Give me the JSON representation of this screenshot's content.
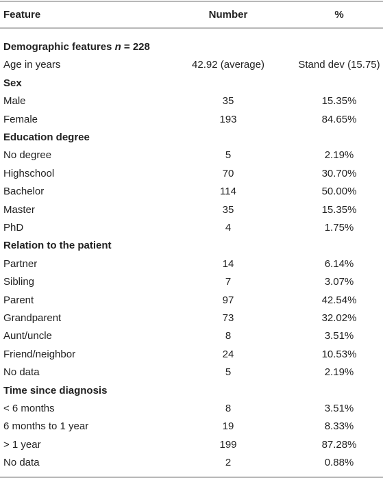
{
  "table": {
    "columns": [
      "Feature",
      "Number",
      "%"
    ],
    "rows": [
      {
        "section": "Demographic features",
        "italic": "n",
        "rest": "= 228"
      },
      [
        "Age in years",
        "42.92 (average)",
        "Stand dev (15.75)"
      ],
      {
        "section": "Sex"
      },
      [
        "Male",
        "35",
        "15.35%"
      ],
      [
        "Female",
        "193",
        "84.65%"
      ],
      {
        "section": "Education degree"
      },
      [
        "No degree",
        "5",
        "2.19%"
      ],
      [
        "Highschool",
        "70",
        "30.70%"
      ],
      [
        "Bachelor",
        "114",
        "50.00%"
      ],
      [
        "Master",
        "35",
        "15.35%"
      ],
      [
        "PhD",
        "4",
        "1.75%"
      ],
      {
        "section": "Relation to the patient"
      },
      [
        "Partner",
        "14",
        "6.14%"
      ],
      [
        "Sibling",
        "7",
        "3.07%"
      ],
      [
        "Parent",
        "97",
        "42.54%"
      ],
      [
        "Grandparent",
        "73",
        "32.02%"
      ],
      [
        "Aunt/uncle",
        "8",
        "3.51%"
      ],
      [
        "Friend/neighbor",
        "24",
        "10.53%"
      ],
      [
        "No data",
        "5",
        "2.19%"
      ],
      {
        "section": "Time since diagnosis"
      },
      [
        "< 6 months",
        "8",
        "3.51%"
      ],
      [
        "6 months to 1 year",
        "19",
        "8.33%"
      ],
      [
        "> 1 year",
        "199",
        "87.28%"
      ],
      [
        "No data",
        "2",
        "0.88%"
      ]
    ]
  }
}
